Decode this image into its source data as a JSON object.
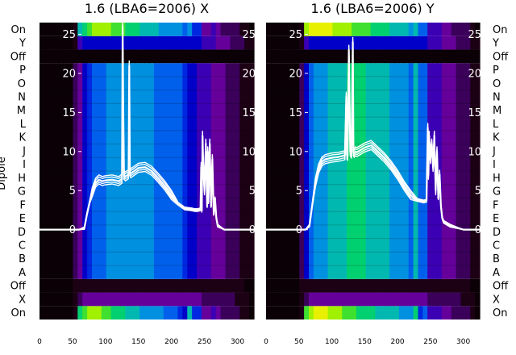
{
  "chart_data": {
    "type": "heatmap",
    "ylabel": "Dipole",
    "dipole_labels": [
      "On",
      "Y",
      "Off",
      "P",
      "O",
      "N",
      "M",
      "L",
      "K",
      "J",
      "I",
      "H",
      "G",
      "F",
      "E",
      "D",
      "C",
      "B",
      "A",
      "Off",
      "X",
      "On"
    ],
    "panels": [
      {
        "title": "1.6 (LBA6=2006) X",
        "x_ticks": [
          0,
          50,
          100,
          150,
          200,
          250,
          300
        ],
        "y_ticks": [
          0,
          5,
          10,
          15,
          20,
          25
        ],
        "xlim": [
          0,
          325
        ],
        "ylim": [
          -11.5,
          26.5
        ],
        "heatmap_colors": [
          "#0a0006",
          "#1c0014",
          "#3a005a",
          "#66009a",
          "#3b00b4",
          "#0000c8",
          "#0028e0",
          "#0060ec",
          "#0090e0",
          "#00b8b0",
          "#00d070",
          "#40e030",
          "#a0f000",
          "#e8f000"
        ],
        "heatmap_strips": [
          {
            "row": "On",
            "values": [
              0,
              0,
              0,
              0,
              0,
              0,
              0,
              1,
              10,
              11,
              12,
              12,
              12,
              11,
              11,
              10,
              10,
              10,
              9,
              9,
              9,
              8,
              8,
              8,
              8,
              8,
              7,
              7,
              7,
              6,
              5,
              9,
              6,
              6,
              3,
              3,
              4,
              3,
              2,
              2,
              2,
              2,
              1,
              1,
              0
            ]
          },
          {
            "row": "X",
            "values": [
              0,
              0,
              0,
              0,
              0,
              0,
              0,
              1,
              2,
              3,
              3,
              3,
              3,
              3,
              3,
              3,
              3,
              3,
              3,
              3,
              3,
              3,
              3,
              3,
              3,
              3,
              3,
              3,
              3,
              3,
              3,
              3,
              3,
              3,
              2,
              2,
              2,
              2,
              2,
              2,
              2,
              1,
              1,
              1,
              0
            ]
          },
          {
            "row": "Off",
            "values": [
              0,
              0,
              0,
              0,
              0,
              0,
              0,
              1,
              1,
              1,
              1,
              1,
              1,
              1,
              1,
              1,
              1,
              1,
              1,
              1,
              1,
              1,
              1,
              1,
              1,
              1,
              1,
              1,
              1,
              1,
              1,
              1,
              1,
              1,
              1,
              1,
              1,
              1,
              1,
              1,
              1,
              1,
              1,
              0,
              0
            ]
          },
          {
            "row": "A-P",
            "values": [
              0,
              0,
              0,
              0,
              0,
              0,
              0,
              2,
              3,
              5,
              6,
              7,
              7,
              7,
              8,
              8,
              8,
              8,
              8,
              8,
              8,
              8,
              8,
              8,
              7,
              7,
              7,
              7,
              7,
              7,
              6,
              5,
              5,
              4,
              4,
              4,
              3,
              3,
              3,
              2,
              2,
              2,
              1,
              1,
              1
            ]
          },
          {
            "row": "Off",
            "values": [
              0,
              0,
              0,
              0,
              0,
              0,
              0,
              0,
              0,
              0,
              0,
              0,
              0,
              0,
              0,
              0,
              0,
              0,
              0,
              0,
              0,
              0,
              0,
              0,
              0,
              0,
              0,
              0,
              0,
              0,
              0,
              0,
              0,
              0,
              0,
              0,
              0,
              0,
              0,
              0,
              0,
              0,
              0,
              0,
              0
            ]
          },
          {
            "row": "Y",
            "values": [
              0,
              0,
              0,
              0,
              0,
              0,
              0,
              1,
              4,
              5,
              5,
              5,
              5,
              5,
              5,
              5,
              5,
              5,
              5,
              5,
              5,
              5,
              5,
              5,
              5,
              5,
              5,
              5,
              5,
              5,
              5,
              5,
              5,
              5,
              4,
              4,
              4,
              3,
              3,
              3,
              2,
              2,
              2,
              1,
              1
            ]
          },
          {
            "row": "On",
            "values": [
              0,
              0,
              0,
              0,
              0,
              0,
              0,
              1,
              9,
              10,
              11,
              12,
              12,
              12,
              12,
              11,
              11,
              11,
              10,
              10,
              10,
              9,
              9,
              9,
              9,
              8,
              8,
              8,
              8,
              8,
              7,
              8,
              6,
              6,
              3,
              3,
              4,
              3,
              2,
              2,
              2,
              2,
              1,
              1,
              0
            ]
          }
        ],
        "trace": {
          "x": [
            0,
            60,
            68,
            72,
            76,
            80,
            85,
            90,
            95,
            100,
            110,
            120,
            125,
            126,
            127,
            128,
            130,
            132,
            134,
            135,
            136,
            137,
            138,
            140,
            150,
            160,
            170,
            180,
            190,
            200,
            210,
            220,
            230,
            235,
            240,
            244,
            245,
            246,
            247,
            248,
            250,
            252,
            254,
            255,
            256,
            258,
            260,
            262,
            264,
            266,
            268,
            270,
            280,
            300,
            325
          ],
          "y": [
            0,
            0,
            0.2,
            2,
            3.5,
            4.8,
            6,
            6.4,
            6.2,
            6.3,
            6.4,
            6.2,
            6.5,
            26,
            15,
            7,
            6.8,
            6.9,
            7,
            7.2,
            21,
            7.5,
            7.2,
            7.3,
            7.9,
            8,
            7.5,
            6.6,
            5.6,
            4.4,
            3.3,
            2.7,
            2.6,
            2.5,
            2.5,
            2.6,
            8,
            2.4,
            12,
            8.5,
            5,
            11,
            3,
            10,
            3.5,
            11,
            3,
            9,
            2,
            4,
            1.5,
            0.5,
            0,
            0,
            0
          ]
        }
      },
      {
        "title": "1.6 (LBA6=2006) Y",
        "x_ticks": [
          0,
          50,
          100,
          150,
          200,
          250,
          300
        ],
        "y_ticks": [
          0,
          5,
          10,
          15,
          20,
          25
        ],
        "xlim": [
          0,
          325
        ],
        "ylim": [
          -11.5,
          26.5
        ],
        "heatmap_colors": [
          "#0a0006",
          "#1c0014",
          "#3a005a",
          "#66009a",
          "#3b00b4",
          "#0000c8",
          "#0028e0",
          "#0060ec",
          "#0090e0",
          "#00b8b0",
          "#00d070",
          "#40e030",
          "#a0f000",
          "#e8f000"
        ],
        "heatmap_strips": [
          {
            "row": "On",
            "values": [
              0,
              0,
              0,
              0,
              0,
              0,
              0,
              1,
              11,
              12,
              13,
              13,
              13,
              12,
              12,
              12,
              11,
              11,
              11,
              10,
              10,
              10,
              10,
              9,
              9,
              9,
              9,
              9,
              8,
              8,
              8,
              10,
              6,
              7,
              4,
              4,
              4,
              3,
              3,
              2,
              2,
              2,
              2,
              1,
              0
            ]
          },
          {
            "row": "X",
            "values": [
              0,
              0,
              0,
              0,
              0,
              0,
              0,
              1,
              2,
              3,
              3,
              3,
              3,
              3,
              3,
              3,
              3,
              3,
              3,
              3,
              3,
              3,
              3,
              3,
              3,
              3,
              3,
              3,
              3,
              3,
              3,
              3,
              3,
              3,
              2,
              2,
              2,
              2,
              2,
              2,
              2,
              1,
              1,
              1,
              0
            ]
          },
          {
            "row": "Off",
            "values": [
              0,
              0,
              0,
              0,
              0,
              0,
              0,
              1,
              1,
              1,
              1,
              1,
              1,
              1,
              1,
              1,
              1,
              1,
              1,
              1,
              1,
              1,
              1,
              1,
              1,
              1,
              1,
              1,
              1,
              1,
              1,
              1,
              1,
              1,
              1,
              1,
              1,
              1,
              1,
              1,
              1,
              1,
              1,
              0,
              0
            ]
          },
          {
            "row": "A-P",
            "values": [
              0,
              0,
              0,
              0,
              0,
              0,
              0,
              2,
              5,
              7,
              8,
              8,
              8,
              9,
              9,
              9,
              9,
              10,
              10,
              10,
              10,
              9,
              9,
              9,
              9,
              9,
              8,
              8,
              8,
              8,
              7,
              9,
              7,
              7,
              4,
              4,
              4,
              3,
              3,
              3,
              2,
              2,
              2,
              1,
              1
            ]
          },
          {
            "row": "Off",
            "values": [
              0,
              0,
              0,
              0,
              0,
              0,
              0,
              0,
              0,
              0,
              0,
              0,
              0,
              0,
              0,
              0,
              0,
              0,
              0,
              0,
              0,
              0,
              0,
              0,
              0,
              0,
              0,
              0,
              0,
              0,
              0,
              0,
              0,
              0,
              0,
              0,
              0,
              0,
              0,
              0,
              0,
              0,
              0,
              0,
              0
            ]
          },
          {
            "row": "Y",
            "values": [
              0,
              0,
              0,
              0,
              0,
              0,
              0,
              1,
              4,
              5,
              5,
              5,
              5,
              5,
              5,
              5,
              5,
              5,
              5,
              5,
              5,
              5,
              5,
              5,
              5,
              5,
              5,
              5,
              5,
              5,
              5,
              5,
              5,
              5,
              4,
              4,
              4,
              3,
              3,
              3,
              2,
              2,
              2,
              1,
              1
            ]
          },
          {
            "row": "On",
            "values": [
              0,
              0,
              0,
              0,
              0,
              0,
              0,
              1,
              12,
              13,
              13,
              13,
              13,
              13,
              12,
              12,
              12,
              12,
              11,
              11,
              11,
              11,
              10,
              10,
              10,
              10,
              9,
              9,
              9,
              9,
              8,
              9,
              7,
              7,
              4,
              4,
              4,
              3,
              3,
              2,
              2,
              2,
              2,
              1,
              0
            ]
          }
        ],
        "trace": {
          "x": [
            0,
            60,
            66,
            70,
            75,
            80,
            85,
            90,
            100,
            110,
            120,
            122,
            123,
            124,
            126,
            128,
            130,
            132,
            133,
            134,
            136,
            138,
            140,
            150,
            160,
            170,
            180,
            190,
            200,
            210,
            220,
            230,
            240,
            244,
            246,
            247,
            248,
            250,
            252,
            254,
            256,
            258,
            260,
            262,
            264,
            266,
            268,
            270,
            280,
            300,
            325
          ],
          "y": [
            0,
            0,
            0.5,
            3,
            6,
            7.8,
            8.7,
            9,
            9.2,
            9.3,
            9.5,
            17,
            9.6,
            9.4,
            23,
            10,
            9.7,
            24,
            10,
            9.8,
            10,
            9.9,
            10,
            10.5,
            10.8,
            10,
            9.2,
            8.2,
            7,
            5.6,
            4.4,
            3.8,
            3.6,
            3.7,
            13,
            7,
            12,
            9,
            11,
            8,
            12,
            5,
            10,
            4,
            7,
            3,
            1.5,
            1,
            0.5,
            0,
            0
          ]
        }
      }
    ]
  }
}
